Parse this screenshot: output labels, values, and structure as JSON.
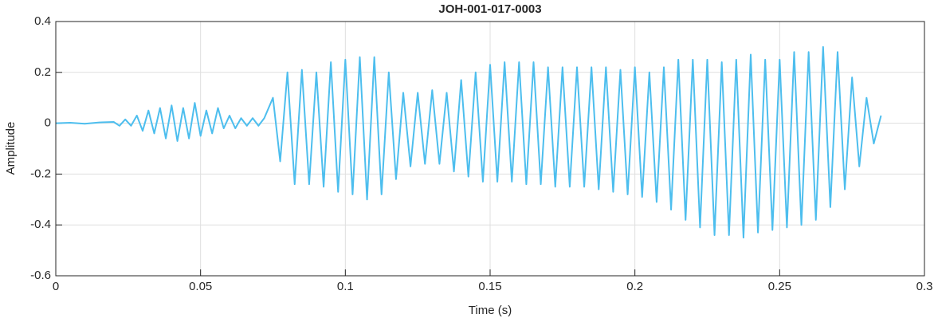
{
  "chart_data": {
    "type": "line",
    "title": "JOH-001-017-0003",
    "xlabel": "Time (s)",
    "ylabel": "Amplitude",
    "xlim": [
      0,
      0.3
    ],
    "xticks": [
      0,
      0.05,
      0.1,
      0.15,
      0.2,
      0.25,
      0.3
    ],
    "ylim": [
      -0.6,
      0.4
    ],
    "yticks": [
      -0.6,
      -0.4,
      -0.2,
      0,
      0.2,
      0.4
    ],
    "grid": true,
    "series": [
      {
        "name": "Amplitude",
        "color": "#4dbeee",
        "x": [
          0,
          0.005,
          0.01,
          0.015,
          0.02,
          0.022,
          0.024,
          0.026,
          0.028,
          0.03,
          0.032,
          0.034,
          0.036,
          0.038,
          0.04,
          0.042,
          0.044,
          0.046,
          0.048,
          0.05,
          0.052,
          0.054,
          0.056,
          0.058,
          0.06,
          0.062,
          0.064,
          0.066,
          0.068,
          0.07,
          0.072,
          0.075,
          0.0775,
          0.08,
          0.0825,
          0.085,
          0.0875,
          0.09,
          0.0925,
          0.095,
          0.0975,
          0.1,
          0.1025,
          0.105,
          0.1075,
          0.11,
          0.1125,
          0.115,
          0.1175,
          0.12,
          0.1225,
          0.125,
          0.1275,
          0.13,
          0.1325,
          0.135,
          0.1375,
          0.14,
          0.1425,
          0.145,
          0.1475,
          0.15,
          0.1525,
          0.155,
          0.1575,
          0.16,
          0.1625,
          0.165,
          0.1675,
          0.17,
          0.1725,
          0.175,
          0.1775,
          0.18,
          0.1825,
          0.185,
          0.1875,
          0.19,
          0.1925,
          0.195,
          0.1975,
          0.2,
          0.2025,
          0.205,
          0.2075,
          0.21,
          0.2125,
          0.215,
          0.2175,
          0.22,
          0.2225,
          0.225,
          0.2275,
          0.23,
          0.2325,
          0.235,
          0.2375,
          0.24,
          0.2425,
          0.245,
          0.2475,
          0.25,
          0.2525,
          0.255,
          0.2575,
          0.26,
          0.2625,
          0.265,
          0.2675,
          0.27,
          0.2725,
          0.275,
          0.2775,
          0.28,
          0.2825,
          0.285
        ],
        "values": [
          0,
          0.002,
          -0.002,
          0.003,
          0.005,
          -0.01,
          0.015,
          -0.01,
          0.03,
          -0.03,
          0.05,
          -0.04,
          0.06,
          -0.06,
          0.07,
          -0.07,
          0.06,
          -0.06,
          0.08,
          -0.05,
          0.05,
          -0.04,
          0.06,
          -0.02,
          0.03,
          -0.02,
          0.02,
          -0.01,
          0.02,
          -0.01,
          0.02,
          0.1,
          -0.15,
          0.2,
          -0.24,
          0.21,
          -0.24,
          0.2,
          -0.25,
          0.24,
          -0.27,
          0.25,
          -0.28,
          0.26,
          -0.3,
          0.26,
          -0.28,
          0.2,
          -0.22,
          0.12,
          -0.17,
          0.12,
          -0.16,
          0.13,
          -0.16,
          0.12,
          -0.19,
          0.17,
          -0.21,
          0.2,
          -0.23,
          0.23,
          -0.23,
          0.24,
          -0.23,
          0.24,
          -0.24,
          0.24,
          -0.24,
          0.22,
          -0.25,
          0.22,
          -0.25,
          0.22,
          -0.25,
          0.22,
          -0.26,
          0.22,
          -0.27,
          0.21,
          -0.28,
          0.22,
          -0.29,
          0.2,
          -0.31,
          0.22,
          -0.34,
          0.25,
          -0.38,
          0.25,
          -0.41,
          0.25,
          -0.44,
          0.24,
          -0.44,
          0.25,
          -0.45,
          0.27,
          -0.43,
          0.25,
          -0.42,
          0.25,
          -0.41,
          0.28,
          -0.4,
          0.28,
          -0.38,
          0.3,
          -0.33,
          0.28,
          -0.26,
          0.18,
          -0.17,
          0.1,
          -0.08,
          0.03
        ]
      }
    ]
  }
}
